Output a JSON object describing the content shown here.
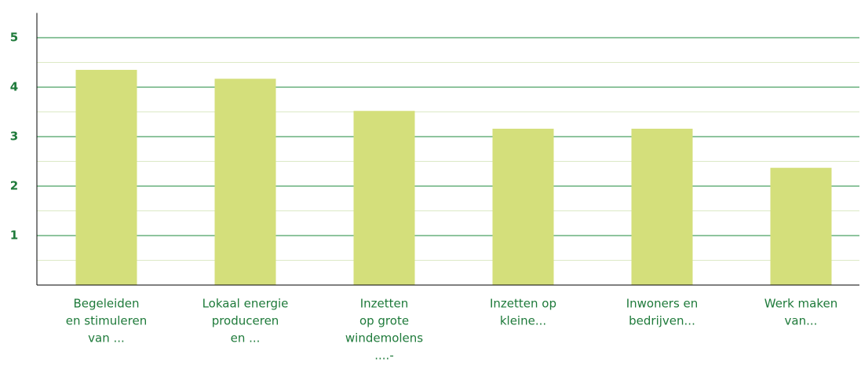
{
  "chart_data": {
    "type": "bar",
    "categories": [
      [
        "Begeleiden",
        "en stimuleren",
        "van ..."
      ],
      [
        "Lokaal energie",
        "produceren",
        "en ..."
      ],
      [
        "Inzetten",
        "op grote",
        "windemolens",
        "....-"
      ],
      [
        "Inzetten op",
        "kleine..."
      ],
      [
        "Inwoners en",
        "bedrijven..."
      ],
      [
        "Werk maken",
        "van..."
      ]
    ],
    "values": [
      4.35,
      4.17,
      3.52,
      3.16,
      3.16,
      2.37
    ],
    "color": "#d4df7b",
    "ylim": [
      0,
      5.5
    ],
    "yticks": [
      1,
      2,
      3,
      4,
      5
    ],
    "minor_yticks": [
      0.5,
      1.5,
      2.5,
      3.5,
      4.5
    ],
    "grid": true,
    "grid_color": "#1e8a3c",
    "minor_grid_color": "#dce9c6"
  }
}
